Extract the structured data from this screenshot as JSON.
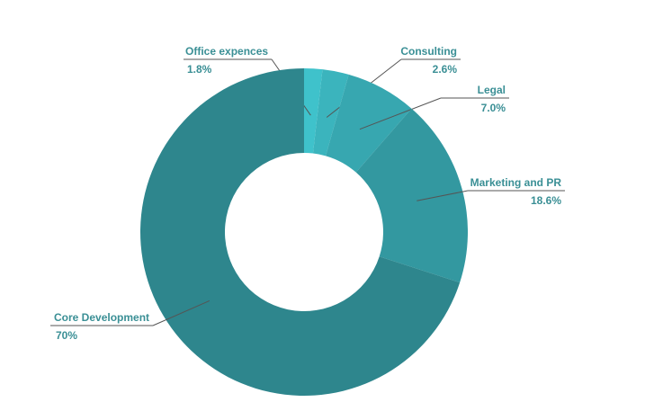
{
  "chart_data": {
    "type": "donut",
    "categories": [
      "Office expences",
      "Consulting",
      "Legal",
      "Marketing and PR",
      "Core Development"
    ],
    "values": [
      1.8,
      2.6,
      7.0,
      18.6,
      70
    ],
    "value_labels": [
      "1.8%",
      "2.6%",
      "7.0%",
      "18.6%",
      "70%"
    ],
    "colors": [
      "#3fc2cb",
      "#3bb4bd",
      "#37a7b0",
      "#3398a0",
      "#2e868d"
    ]
  }
}
